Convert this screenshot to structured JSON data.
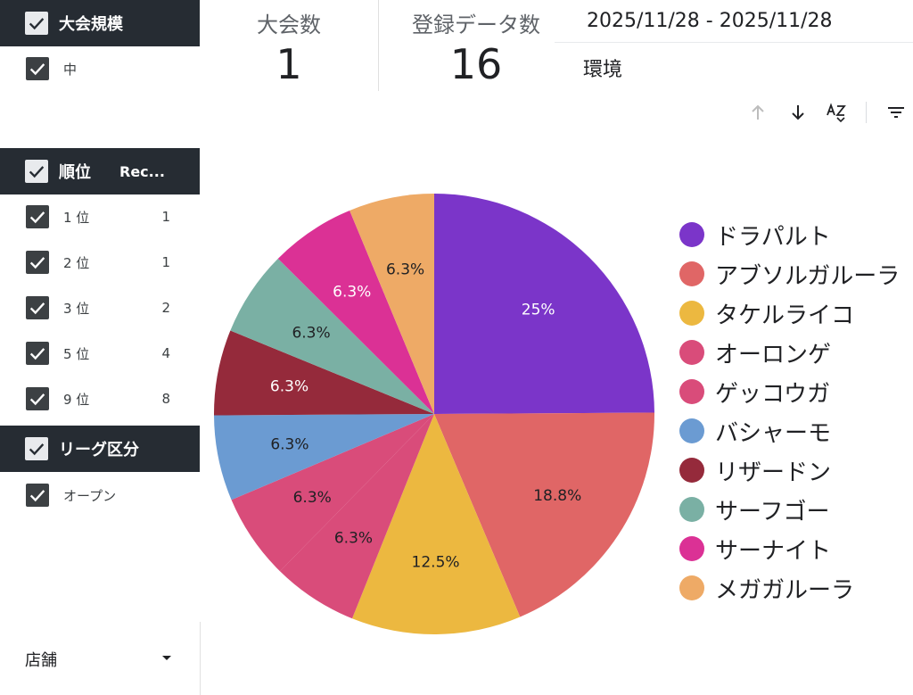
{
  "filters": {
    "size": {
      "header": "大会規模",
      "items": [
        {
          "label": "中"
        }
      ]
    },
    "rank": {
      "header": "順位",
      "header2": "Rec...",
      "items": [
        {
          "label": "1 位",
          "count": "1"
        },
        {
          "label": "2 位",
          "count": "1"
        },
        {
          "label": "3 位",
          "count": "2"
        },
        {
          "label": "5 位",
          "count": "4"
        },
        {
          "label": "9 位",
          "count": "8"
        }
      ]
    },
    "league": {
      "header": "リーグ区分",
      "items": [
        {
          "label": "オープン"
        }
      ]
    },
    "store": {
      "label": "店舗"
    }
  },
  "kpis": [
    {
      "label": "大会数",
      "value": "1"
    },
    {
      "label": "登録データ数",
      "value": "16"
    }
  ],
  "date_range": "2025/11/28 - 2025/11/28",
  "environment_label": "環境",
  "toolbar_icons": [
    "sort-ascending-icon",
    "sort-descending-icon",
    "sort-az-icon",
    "filter-icon"
  ],
  "chart_data": {
    "type": "pie",
    "categories": [
      "ドラパルト",
      "アブソルガルーラ",
      "タケルライコ",
      "オーロンゲ",
      "ゲッコウガ",
      "バシャーモ",
      "リザードン",
      "サーフゴー",
      "サーナイト",
      "メガガルーラ"
    ],
    "values": [
      25,
      18.8,
      12.5,
      6.3,
      6.3,
      6.3,
      6.3,
      6.3,
      6.3,
      6.3
    ],
    "labels": [
      "25%",
      "18.8%",
      "12.5%",
      "6.3%",
      "6.3%",
      "6.3%",
      "6.3%",
      "6.3%",
      "6.3%",
      "6.3%"
    ],
    "colors": [
      "#7b35c9",
      "#e06666",
      "#ecb840",
      "#d94c7a",
      "#d94c7a",
      "#6b9bd2",
      "#952a3b",
      "#7ab0a4",
      "#db3195",
      "#eeaa66"
    ],
    "label_colors": [
      "#ffffff",
      "#202124",
      "#202124",
      "#202124",
      "#202124",
      "#202124",
      "#ffffff",
      "#202124",
      "#ffffff",
      "#202124"
    ],
    "legend_position": "right"
  }
}
